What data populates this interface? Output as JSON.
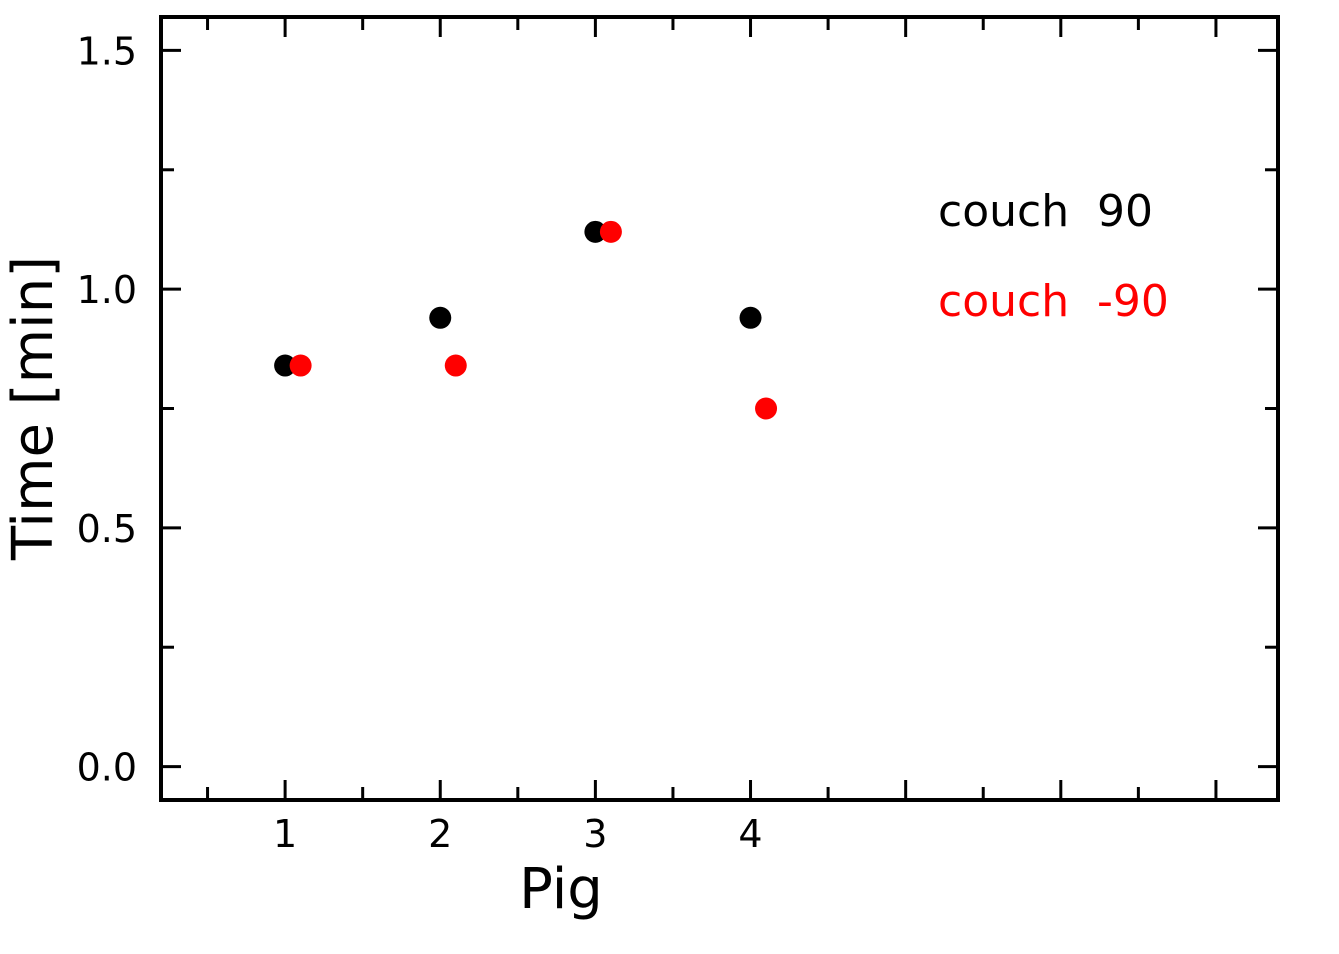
{
  "chart_data": {
    "type": "scatter",
    "title": "",
    "xlabel": "Pig",
    "ylabel": "Time [min]",
    "xlim": [
      0.2,
      7.4
    ],
    "ylim": [
      -0.07,
      1.57
    ],
    "x_ticks": [
      1,
      2,
      3,
      4
    ],
    "x_tick_labels": [
      "1",
      "2",
      "3",
      "4"
    ],
    "y_ticks": [
      0.0,
      0.5,
      1.0,
      1.5
    ],
    "y_tick_labels": [
      "0.0",
      "0.5",
      "1.0",
      "1.5"
    ],
    "grid": false,
    "legend_position": "top-right",
    "series": [
      {
        "name": "couch  90",
        "color": "#000000",
        "points": [
          {
            "x": 1.0,
            "y": 0.84
          },
          {
            "x": 2.0,
            "y": 0.94
          },
          {
            "x": 3.0,
            "y": 1.12
          },
          {
            "x": 4.0,
            "y": 0.94
          }
        ]
      },
      {
        "name": "couch  -90",
        "color": "#ff0000",
        "points": [
          {
            "x": 1.1,
            "y": 0.84
          },
          {
            "x": 2.1,
            "y": 0.84
          },
          {
            "x": 3.1,
            "y": 1.12
          },
          {
            "x": 4.1,
            "y": 0.75
          }
        ]
      }
    ]
  }
}
